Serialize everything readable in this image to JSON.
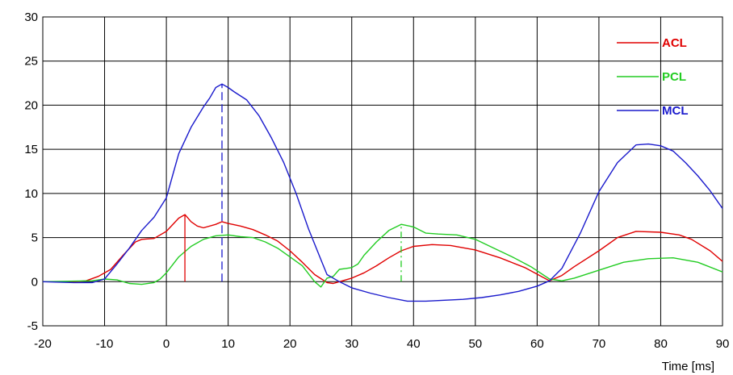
{
  "chart_data": {
    "type": "line",
    "title": "",
    "xlabel": "Time [ms]",
    "ylabel": "",
    "xlim": [
      -20,
      90
    ],
    "ylim": [
      -5,
      30
    ],
    "xticks": [
      -20,
      -10,
      0,
      10,
      20,
      30,
      40,
      50,
      60,
      70,
      80,
      90
    ],
    "yticks": [
      -5,
      0,
      5,
      10,
      15,
      20,
      25,
      30
    ],
    "grid": true,
    "legend_position": "top-right",
    "series": [
      {
        "name": "ACL",
        "color": "#e00000",
        "points": [
          [
            -20,
            0
          ],
          [
            -15,
            0
          ],
          [
            -13,
            0.1
          ],
          [
            -11,
            0.6
          ],
          [
            -9,
            1.4
          ],
          [
            -7,
            3.0
          ],
          [
            -5,
            4.5
          ],
          [
            -4,
            4.8
          ],
          [
            -2,
            4.9
          ],
          [
            0,
            5.7
          ],
          [
            2,
            7.2
          ],
          [
            3,
            7.6
          ],
          [
            4,
            6.8
          ],
          [
            5,
            6.3
          ],
          [
            6,
            6.1
          ],
          [
            8,
            6.5
          ],
          [
            9,
            6.8
          ],
          [
            10,
            6.6
          ],
          [
            12,
            6.3
          ],
          [
            14,
            5.9
          ],
          [
            16,
            5.3
          ],
          [
            18,
            4.6
          ],
          [
            20,
            3.5
          ],
          [
            22,
            2.2
          ],
          [
            24,
            0.8
          ],
          [
            26,
            -0.1
          ],
          [
            27,
            -0.2
          ],
          [
            28,
            0.0
          ],
          [
            30,
            0.4
          ],
          [
            32,
            1.0
          ],
          [
            34,
            1.8
          ],
          [
            36,
            2.7
          ],
          [
            38,
            3.5
          ],
          [
            40,
            4.0
          ],
          [
            43,
            4.2
          ],
          [
            46,
            4.1
          ],
          [
            50,
            3.6
          ],
          [
            54,
            2.7
          ],
          [
            58,
            1.6
          ],
          [
            62,
            0.1
          ],
          [
            64,
            0.7
          ],
          [
            66,
            1.7
          ],
          [
            70,
            3.5
          ],
          [
            73,
            5.0
          ],
          [
            76,
            5.7
          ],
          [
            80,
            5.6
          ],
          [
            83,
            5.3
          ],
          [
            85,
            4.8
          ],
          [
            88,
            3.5
          ],
          [
            90,
            2.3
          ]
        ]
      },
      {
        "name": "PCL",
        "color": "#22cc22",
        "points": [
          [
            -20,
            0
          ],
          [
            -12,
            0.1
          ],
          [
            -10,
            0.3
          ],
          [
            -8,
            0.2
          ],
          [
            -6,
            -0.2
          ],
          [
            -4,
            -0.3
          ],
          [
            -2,
            -0.1
          ],
          [
            -1,
            0.3
          ],
          [
            0,
            1.0
          ],
          [
            2,
            2.8
          ],
          [
            4,
            4.0
          ],
          [
            6,
            4.8
          ],
          [
            8,
            5.2
          ],
          [
            10,
            5.3
          ],
          [
            12,
            5.1
          ],
          [
            14,
            5.0
          ],
          [
            16,
            4.5
          ],
          [
            18,
            3.8
          ],
          [
            20,
            2.8
          ],
          [
            22,
            1.8
          ],
          [
            24,
            0.0
          ],
          [
            25,
            -0.6
          ],
          [
            26,
            0.4
          ],
          [
            27,
            0.6
          ],
          [
            28,
            1.4
          ],
          [
            29,
            1.5
          ],
          [
            30,
            1.6
          ],
          [
            31,
            2.0
          ],
          [
            32,
            3.0
          ],
          [
            34,
            4.5
          ],
          [
            36,
            5.8
          ],
          [
            38,
            6.5
          ],
          [
            40,
            6.2
          ],
          [
            42,
            5.5
          ],
          [
            44,
            5.4
          ],
          [
            47,
            5.3
          ],
          [
            50,
            4.8
          ],
          [
            53,
            3.8
          ],
          [
            56,
            2.8
          ],
          [
            59,
            1.7
          ],
          [
            62,
            0.3
          ],
          [
            64,
            0.1
          ],
          [
            66,
            0.4
          ],
          [
            70,
            1.3
          ],
          [
            74,
            2.2
          ],
          [
            78,
            2.6
          ],
          [
            82,
            2.7
          ],
          [
            86,
            2.2
          ],
          [
            90,
            1.1
          ]
        ]
      },
      {
        "name": "MCL",
        "color": "#1a1acc",
        "points": [
          [
            -20,
            0
          ],
          [
            -15,
            -0.1
          ],
          [
            -12,
            -0.1
          ],
          [
            -10,
            0.3
          ],
          [
            -8,
            2.0
          ],
          [
            -6,
            3.8
          ],
          [
            -4,
            5.8
          ],
          [
            -2,
            7.3
          ],
          [
            0,
            9.5
          ],
          [
            1,
            12.0
          ],
          [
            2,
            14.5
          ],
          [
            4,
            17.5
          ],
          [
            6,
            19.8
          ],
          [
            7,
            20.8
          ],
          [
            8,
            22.0
          ],
          [
            9,
            22.4
          ],
          [
            10,
            22.0
          ],
          [
            11,
            21.5
          ],
          [
            13,
            20.6
          ],
          [
            15,
            18.8
          ],
          [
            17,
            16.3
          ],
          [
            19,
            13.5
          ],
          [
            21,
            10.0
          ],
          [
            23,
            6.0
          ],
          [
            25,
            2.5
          ],
          [
            26,
            0.8
          ],
          [
            28,
            0.0
          ],
          [
            30,
            -0.7
          ],
          [
            33,
            -1.3
          ],
          [
            36,
            -1.8
          ],
          [
            39,
            -2.2
          ],
          [
            42,
            -2.2
          ],
          [
            45,
            -2.1
          ],
          [
            48,
            -2.0
          ],
          [
            51,
            -1.8
          ],
          [
            54,
            -1.5
          ],
          [
            57,
            -1.1
          ],
          [
            60,
            -0.5
          ],
          [
            62,
            0.1
          ],
          [
            64,
            1.5
          ],
          [
            67,
            5.5
          ],
          [
            70,
            10.2
          ],
          [
            73,
            13.5
          ],
          [
            76,
            15.5
          ],
          [
            78,
            15.6
          ],
          [
            80,
            15.4
          ],
          [
            82,
            14.8
          ],
          [
            84,
            13.5
          ],
          [
            86,
            12.0
          ],
          [
            88,
            10.3
          ],
          [
            90,
            8.3
          ]
        ]
      }
    ],
    "annotations": [
      {
        "type": "vertical-marker",
        "series": "ACL",
        "x": 3,
        "y": 7.6,
        "style": "solid"
      },
      {
        "type": "vertical-marker",
        "series": "MCL",
        "x": 9,
        "y": 22.4,
        "style": "dashed"
      },
      {
        "type": "vertical-marker",
        "series": "PCL",
        "x": 38,
        "y": 6.5,
        "style": "dash-dot"
      }
    ]
  }
}
